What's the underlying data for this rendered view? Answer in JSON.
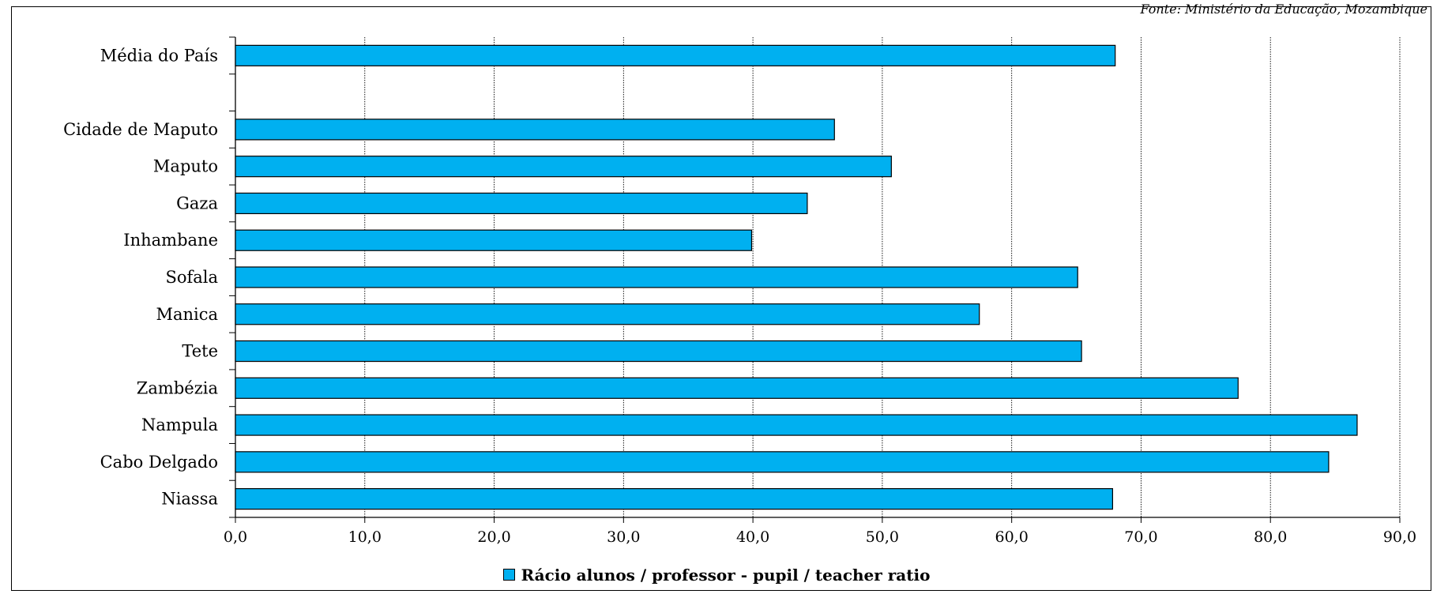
{
  "header": {
    "top_note": "Fonte: Ministério da Educação, Mozambique"
  },
  "chart_data": {
    "type": "bar",
    "orientation": "horizontal",
    "categories": [
      "Média do País",
      "",
      "Cidade de Maputo",
      "Maputo",
      "Gaza",
      "Inhambane",
      "Sofala",
      "Manica",
      "Tete",
      "Zambézia",
      "Nampula",
      "Cabo Delgado",
      "Niassa"
    ],
    "series": [
      {
        "name": "Rácio alunos / professor - pupil / teacher ratio",
        "color": "#00b0f0",
        "values": [
          68.0,
          null,
          46.3,
          50.7,
          44.2,
          39.9,
          65.1,
          57.5,
          65.4,
          77.5,
          86.7,
          84.5,
          67.8
        ]
      }
    ],
    "xlim": [
      0,
      90
    ],
    "x_ticks": [
      "0,0",
      "10,0",
      "20,0",
      "30,0",
      "40,0",
      "50,0",
      "60,0",
      "70,0",
      "80,0",
      "90,0"
    ],
    "grid": true,
    "legend_position": "bottom"
  }
}
